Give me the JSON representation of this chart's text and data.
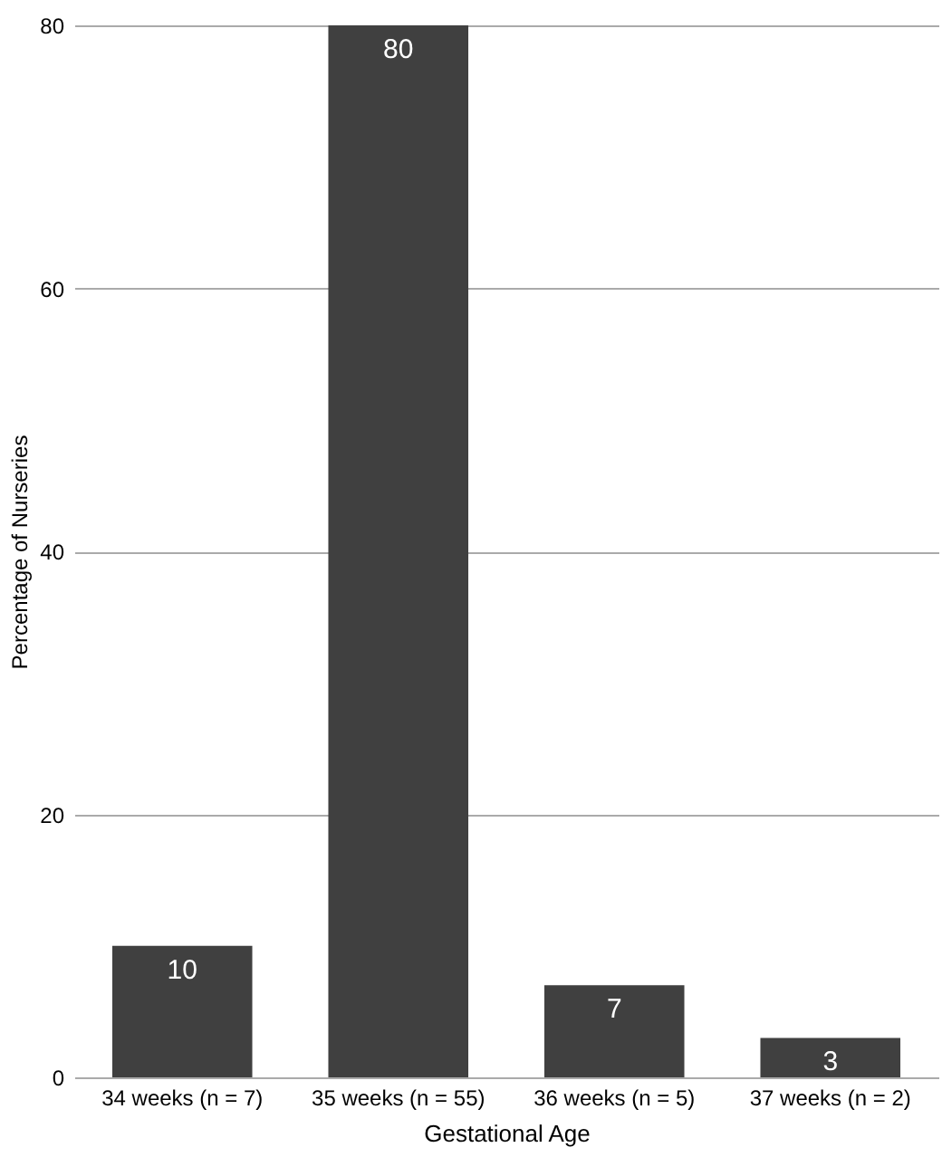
{
  "chart_data": {
    "type": "bar",
    "xlabel": "Gestational Age",
    "ylabel": "Percentage of Nurseries",
    "categories": [
      "34 weeks (n = 7)",
      "35 weeks (n = 55)",
      "36 weeks (n = 5)",
      "37 weeks (n = 2)"
    ],
    "values": [
      10,
      80,
      7,
      3
    ],
    "color": "#404040",
    "ylim": [
      0,
      80
    ],
    "yticks": [
      0,
      20,
      40,
      60,
      80
    ],
    "grid": "y",
    "data_labels": true
  }
}
